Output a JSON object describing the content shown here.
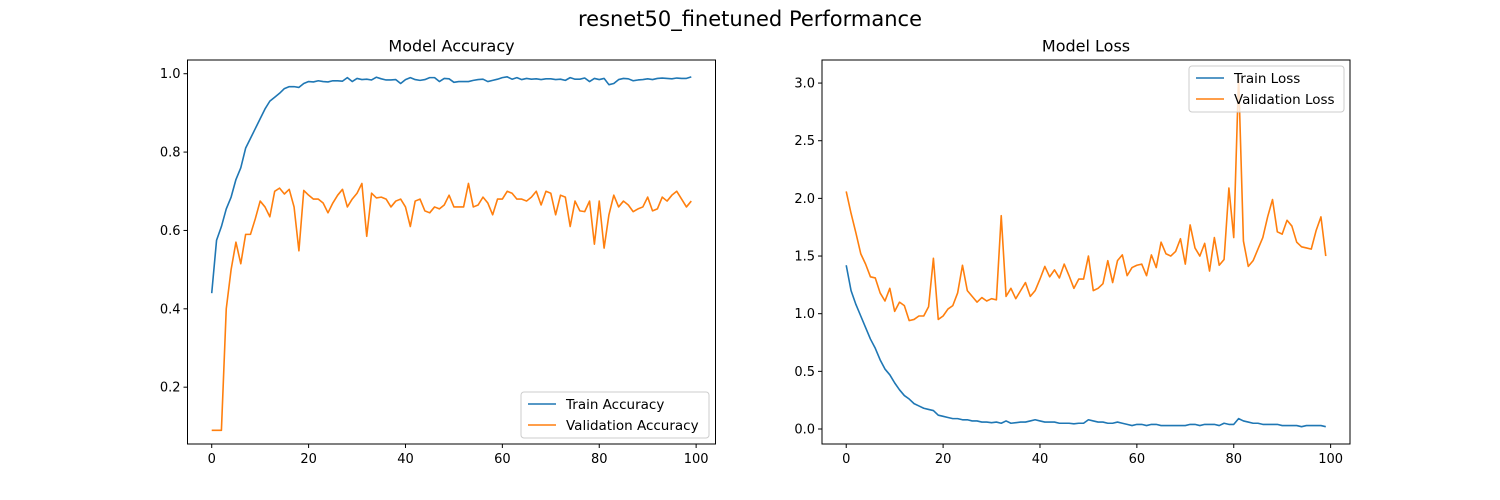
{
  "figure": {
    "title": "resnet50_finetuned Performance"
  },
  "colors": {
    "train": "#1f77b4",
    "validation": "#ff7f0e"
  },
  "chart_data": [
    {
      "type": "line",
      "title": "Model Accuracy",
      "xlabel": "",
      "ylabel": "",
      "xlim": [
        -5,
        104
      ],
      "ylim": [
        0.055,
        1.035
      ],
      "xticks": [
        0,
        20,
        40,
        60,
        80,
        100
      ],
      "yticks": [
        0.2,
        0.4,
        0.6,
        0.8,
        1.0
      ],
      "xtick_labels": [
        "0",
        "20",
        "40",
        "60",
        "80",
        "100"
      ],
      "ytick_labels": [
        "0.2",
        "0.4",
        "0.6",
        "0.8",
        "1.0"
      ],
      "grid": false,
      "legend_position": "lower-right",
      "series": [
        {
          "name": "Train Accuracy",
          "color": "#1f77b4",
          "x": [
            0,
            1,
            2,
            3,
            4,
            5,
            6,
            7,
            8,
            9,
            10,
            11,
            12,
            13,
            14,
            15,
            16,
            17,
            18,
            19,
            20,
            21,
            22,
            23,
            24,
            25,
            26,
            27,
            28,
            29,
            30,
            31,
            32,
            33,
            34,
            35,
            36,
            37,
            38,
            39,
            40,
            41,
            42,
            43,
            44,
            45,
            46,
            47,
            48,
            49,
            50,
            51,
            52,
            53,
            54,
            55,
            56,
            57,
            58,
            59,
            60,
            61,
            62,
            63,
            64,
            65,
            66,
            67,
            68,
            69,
            70,
            71,
            72,
            73,
            74,
            75,
            76,
            77,
            78,
            79,
            80,
            81,
            82,
            83,
            84,
            85,
            86,
            87,
            88,
            89,
            90,
            91,
            92,
            93,
            94,
            95,
            96,
            97,
            98,
            99
          ],
          "values": [
            0.44,
            0.575,
            0.61,
            0.655,
            0.685,
            0.73,
            0.76,
            0.81,
            0.835,
            0.86,
            0.885,
            0.91,
            0.93,
            0.94,
            0.95,
            0.962,
            0.967,
            0.967,
            0.965,
            0.975,
            0.98,
            0.979,
            0.982,
            0.98,
            0.979,
            0.982,
            0.982,
            0.981,
            0.99,
            0.98,
            0.988,
            0.985,
            0.986,
            0.984,
            0.991,
            0.987,
            0.984,
            0.984,
            0.985,
            0.975,
            0.985,
            0.99,
            0.985,
            0.983,
            0.985,
            0.99,
            0.99,
            0.98,
            0.988,
            0.987,
            0.978,
            0.98,
            0.98,
            0.98,
            0.983,
            0.985,
            0.986,
            0.98,
            0.983,
            0.986,
            0.99,
            0.992,
            0.986,
            0.99,
            0.985,
            0.988,
            0.986,
            0.987,
            0.985,
            0.987,
            0.987,
            0.985,
            0.986,
            0.983,
            0.99,
            0.986,
            0.986,
            0.989,
            0.98,
            0.988,
            0.985,
            0.988,
            0.972,
            0.975,
            0.985,
            0.988,
            0.987,
            0.982,
            0.984,
            0.985,
            0.987,
            0.985,
            0.988,
            0.989,
            0.988,
            0.987,
            0.989,
            0.988,
            0.988,
            0.992
          ]
        },
        {
          "name": "Validation Accuracy",
          "color": "#ff7f0e",
          "x": [
            0,
            1,
            2,
            3,
            4,
            5,
            6,
            7,
            8,
            9,
            10,
            11,
            12,
            13,
            14,
            15,
            16,
            17,
            18,
            19,
            20,
            21,
            22,
            23,
            24,
            25,
            26,
            27,
            28,
            29,
            30,
            31,
            32,
            33,
            34,
            35,
            36,
            37,
            38,
            39,
            40,
            41,
            42,
            43,
            44,
            45,
            46,
            47,
            48,
            49,
            50,
            51,
            52,
            53,
            54,
            55,
            56,
            57,
            58,
            59,
            60,
            61,
            62,
            63,
            64,
            65,
            66,
            67,
            68,
            69,
            70,
            71,
            72,
            73,
            74,
            75,
            76,
            77,
            78,
            79,
            80,
            81,
            82,
            83,
            84,
            85,
            86,
            87,
            88,
            89,
            90,
            91,
            92,
            93,
            94,
            95,
            96,
            97,
            98,
            99
          ],
          "values": [
            0.09,
            0.09,
            0.09,
            0.4,
            0.5,
            0.57,
            0.515,
            0.59,
            0.59,
            0.63,
            0.675,
            0.66,
            0.635,
            0.7,
            0.708,
            0.693,
            0.705,
            0.66,
            0.548,
            0.702,
            0.69,
            0.68,
            0.68,
            0.67,
            0.645,
            0.67,
            0.69,
            0.705,
            0.66,
            0.68,
            0.695,
            0.72,
            0.585,
            0.695,
            0.683,
            0.685,
            0.68,
            0.66,
            0.675,
            0.68,
            0.66,
            0.61,
            0.675,
            0.68,
            0.65,
            0.645,
            0.66,
            0.655,
            0.665,
            0.69,
            0.66,
            0.66,
            0.66,
            0.72,
            0.66,
            0.665,
            0.685,
            0.67,
            0.64,
            0.68,
            0.68,
            0.7,
            0.695,
            0.68,
            0.68,
            0.675,
            0.685,
            0.7,
            0.665,
            0.7,
            0.695,
            0.64,
            0.69,
            0.685,
            0.61,
            0.675,
            0.65,
            0.648,
            0.675,
            0.565,
            0.675,
            0.555,
            0.64,
            0.69,
            0.66,
            0.675,
            0.665,
            0.648,
            0.655,
            0.66,
            0.685,
            0.65,
            0.655,
            0.685,
            0.675,
            0.69,
            0.7,
            0.68,
            0.66,
            0.675
          ]
        }
      ]
    },
    {
      "type": "line",
      "title": "Model Loss",
      "xlabel": "",
      "ylabel": "",
      "xlim": [
        -5,
        104
      ],
      "ylim": [
        -0.13,
        3.2
      ],
      "xticks": [
        0,
        20,
        40,
        60,
        80,
        100
      ],
      "yticks": [
        0.0,
        0.5,
        1.0,
        1.5,
        2.0,
        2.5,
        3.0
      ],
      "xtick_labels": [
        "0",
        "20",
        "40",
        "60",
        "80",
        "100"
      ],
      "ytick_labels": [
        "0.0",
        "0.5",
        "1.0",
        "1.5",
        "2.0",
        "2.5",
        "3.0"
      ],
      "grid": false,
      "legend_position": "top-right",
      "series": [
        {
          "name": "Train Loss",
          "color": "#1f77b4",
          "x": [
            0,
            1,
            2,
            3,
            4,
            5,
            6,
            7,
            8,
            9,
            10,
            11,
            12,
            13,
            14,
            15,
            16,
            17,
            18,
            19,
            20,
            21,
            22,
            23,
            24,
            25,
            26,
            27,
            28,
            29,
            30,
            31,
            32,
            33,
            34,
            35,
            36,
            37,
            38,
            39,
            40,
            41,
            42,
            43,
            44,
            45,
            46,
            47,
            48,
            49,
            50,
            51,
            52,
            53,
            54,
            55,
            56,
            57,
            58,
            59,
            60,
            61,
            62,
            63,
            64,
            65,
            66,
            67,
            68,
            69,
            70,
            71,
            72,
            73,
            74,
            75,
            76,
            77,
            78,
            79,
            80,
            81,
            82,
            83,
            84,
            85,
            86,
            87,
            88,
            89,
            90,
            91,
            92,
            93,
            94,
            95,
            96,
            97,
            98,
            99
          ],
          "values": [
            1.42,
            1.2,
            1.08,
            0.98,
            0.88,
            0.78,
            0.7,
            0.6,
            0.52,
            0.47,
            0.4,
            0.34,
            0.29,
            0.26,
            0.22,
            0.2,
            0.18,
            0.17,
            0.16,
            0.12,
            0.11,
            0.1,
            0.09,
            0.09,
            0.08,
            0.08,
            0.07,
            0.07,
            0.06,
            0.06,
            0.055,
            0.06,
            0.05,
            0.07,
            0.05,
            0.055,
            0.06,
            0.06,
            0.07,
            0.08,
            0.07,
            0.06,
            0.06,
            0.06,
            0.05,
            0.05,
            0.05,
            0.045,
            0.05,
            0.05,
            0.08,
            0.07,
            0.06,
            0.06,
            0.05,
            0.05,
            0.06,
            0.05,
            0.04,
            0.03,
            0.04,
            0.04,
            0.03,
            0.04,
            0.04,
            0.03,
            0.03,
            0.03,
            0.03,
            0.03,
            0.03,
            0.04,
            0.04,
            0.03,
            0.04,
            0.04,
            0.04,
            0.03,
            0.05,
            0.04,
            0.04,
            0.09,
            0.07,
            0.06,
            0.05,
            0.05,
            0.04,
            0.04,
            0.04,
            0.04,
            0.03,
            0.03,
            0.03,
            0.03,
            0.02,
            0.03,
            0.03,
            0.03,
            0.03,
            0.02
          ]
        },
        {
          "name": "Validation Loss",
          "color": "#ff7f0e",
          "x": [
            0,
            1,
            2,
            3,
            4,
            5,
            6,
            7,
            8,
            9,
            10,
            11,
            12,
            13,
            14,
            15,
            16,
            17,
            18,
            19,
            20,
            21,
            22,
            23,
            24,
            25,
            26,
            27,
            28,
            29,
            30,
            31,
            32,
            33,
            34,
            35,
            36,
            37,
            38,
            39,
            40,
            41,
            42,
            43,
            44,
            45,
            46,
            47,
            48,
            49,
            50,
            51,
            52,
            53,
            54,
            55,
            56,
            57,
            58,
            59,
            60,
            61,
            62,
            63,
            64,
            65,
            66,
            67,
            68,
            69,
            70,
            71,
            72,
            73,
            74,
            75,
            76,
            77,
            78,
            79,
            80,
            81,
            82,
            83,
            84,
            85,
            86,
            87,
            88,
            89,
            90,
            91,
            92,
            93,
            94,
            95,
            96,
            97,
            98,
            99
          ],
          "values": [
            2.06,
            1.87,
            1.7,
            1.52,
            1.43,
            1.32,
            1.31,
            1.18,
            1.11,
            1.22,
            1.02,
            1.1,
            1.07,
            0.94,
            0.95,
            0.98,
            0.98,
            1.06,
            1.48,
            0.95,
            0.98,
            1.04,
            1.07,
            1.18,
            1.42,
            1.2,
            1.15,
            1.1,
            1.14,
            1.11,
            1.13,
            1.12,
            1.85,
            1.15,
            1.22,
            1.13,
            1.2,
            1.27,
            1.15,
            1.2,
            1.3,
            1.41,
            1.32,
            1.38,
            1.31,
            1.43,
            1.33,
            1.22,
            1.3,
            1.3,
            1.5,
            1.2,
            1.22,
            1.26,
            1.46,
            1.27,
            1.46,
            1.51,
            1.33,
            1.4,
            1.42,
            1.43,
            1.33,
            1.51,
            1.4,
            1.62,
            1.52,
            1.5,
            1.54,
            1.65,
            1.43,
            1.77,
            1.57,
            1.5,
            1.61,
            1.37,
            1.66,
            1.42,
            1.47,
            2.09,
            1.66,
            3.06,
            1.63,
            1.41,
            1.46,
            1.56,
            1.66,
            1.84,
            1.99,
            1.71,
            1.69,
            1.81,
            1.76,
            1.62,
            1.58,
            1.57,
            1.56,
            1.72,
            1.84,
            1.5
          ]
        }
      ]
    }
  ]
}
